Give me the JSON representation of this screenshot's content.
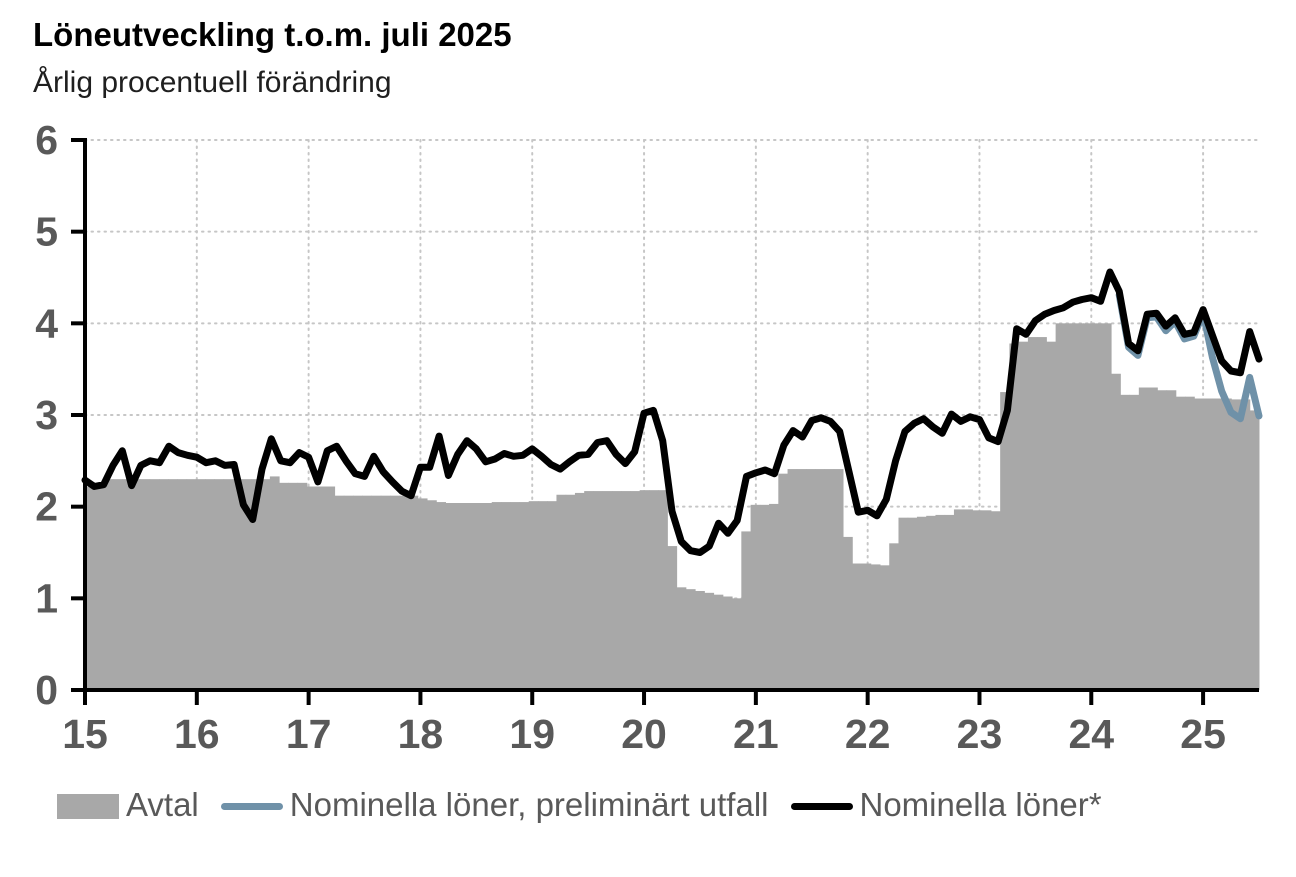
{
  "header": {
    "title": "Löneutveckling t.o.m. juli 2025",
    "subtitle": "Årlig procentuell förändring"
  },
  "chart_data": {
    "type": "combo-bar-line",
    "title": "Löneutveckling t.o.m. juli 2025",
    "subtitle": "Årlig procentuell förändring",
    "x_unit": "month",
    "x_start": "2015-01",
    "x_end": "2025-07",
    "points_count": 127,
    "ylim": [
      0,
      6
    ],
    "y_tick_labels": [
      "0",
      "1",
      "2",
      "3",
      "4",
      "5",
      "6"
    ],
    "x_tick_labels": [
      "15",
      "16",
      "17",
      "18",
      "19",
      "20",
      "21",
      "22",
      "23",
      "24",
      "25"
    ],
    "x_tick_month_index": [
      0,
      12,
      24,
      36,
      48,
      60,
      72,
      84,
      96,
      108,
      120
    ],
    "grid": "dotted",
    "legend_position": "bottom",
    "series": [
      {
        "name": "Avtal",
        "type": "bar",
        "color": "#a8a8a8",
        "values": [
          2.22,
          2.22,
          2.3,
          2.3,
          2.3,
          2.3,
          2.3,
          2.3,
          2.3,
          2.3,
          2.3,
          2.3,
          2.3,
          2.3,
          2.3,
          2.3,
          2.3,
          2.3,
          2.3,
          2.3,
          2.33,
          2.26,
          2.26,
          2.26,
          2.22,
          2.22,
          2.22,
          2.12,
          2.12,
          2.12,
          2.12,
          2.12,
          2.12,
          2.12,
          2.12,
          2.12,
          2.09,
          2.07,
          2.05,
          2.04,
          2.04,
          2.04,
          2.04,
          2.04,
          2.05,
          2.05,
          2.05,
          2.05,
          2.06,
          2.06,
          2.06,
          2.13,
          2.13,
          2.15,
          2.17,
          2.17,
          2.17,
          2.17,
          2.17,
          2.17,
          2.18,
          2.18,
          2.18,
          1.57,
          1.12,
          1.1,
          1.08,
          1.06,
          1.04,
          1.02,
          1.0,
          1.73,
          2.02,
          2.02,
          2.03,
          2.36,
          2.41,
          2.41,
          2.41,
          2.41,
          2.41,
          2.41,
          1.67,
          1.38,
          1.38,
          1.37,
          1.36,
          1.6,
          1.88,
          1.88,
          1.89,
          1.9,
          1.91,
          1.91,
          1.97,
          1.97,
          1.96,
          1.96,
          1.95,
          3.25,
          3.78,
          3.8,
          3.85,
          3.85,
          3.8,
          4.0,
          4.0,
          4.0,
          4.0,
          4.0,
          4.0,
          3.45,
          3.22,
          3.22,
          3.3,
          3.3,
          3.27,
          3.27,
          3.2,
          3.2,
          3.18,
          3.18,
          3.18,
          3.18,
          3.17,
          3.17,
          3.05
        ]
      },
      {
        "name": "Nominella löner, preliminärt utfall",
        "type": "line",
        "color": "#6f91a8",
        "start_index": 111,
        "values": [
          4.31,
          3.74,
          3.65,
          4.06,
          4.07,
          3.92,
          4.02,
          3.83,
          3.86,
          4.11,
          3.63,
          3.26,
          3.03,
          2.96,
          3.41,
          2.99
        ]
      },
      {
        "name": "Nominella löner*",
        "type": "line",
        "color": "#000000",
        "values": [
          2.29,
          2.22,
          2.24,
          2.45,
          2.61,
          2.23,
          2.45,
          2.5,
          2.48,
          2.66,
          2.59,
          2.56,
          2.54,
          2.48,
          2.5,
          2.45,
          2.46,
          2.02,
          1.86,
          2.41,
          2.74,
          2.5,
          2.48,
          2.59,
          2.54,
          2.27,
          2.61,
          2.66,
          2.5,
          2.36,
          2.33,
          2.55,
          2.38,
          2.27,
          2.17,
          2.12,
          2.43,
          2.43,
          2.77,
          2.34,
          2.57,
          2.72,
          2.63,
          2.49,
          2.52,
          2.58,
          2.55,
          2.56,
          2.63,
          2.55,
          2.46,
          2.41,
          2.49,
          2.56,
          2.57,
          2.7,
          2.72,
          2.57,
          2.47,
          2.6,
          3.02,
          3.05,
          2.72,
          1.95,
          1.62,
          1.52,
          1.5,
          1.57,
          1.82,
          1.71,
          1.85,
          2.33,
          2.37,
          2.4,
          2.36,
          2.67,
          2.83,
          2.76,
          2.94,
          2.97,
          2.93,
          2.82,
          2.38,
          1.94,
          1.96,
          1.9,
          2.08,
          2.5,
          2.82,
          2.91,
          2.96,
          2.87,
          2.8,
          3.01,
          2.93,
          2.98,
          2.95,
          2.75,
          2.71,
          3.05,
          3.94,
          3.88,
          4.03,
          4.1,
          4.14,
          4.17,
          4.23,
          4.26,
          4.28,
          4.24,
          4.56,
          4.35,
          3.78,
          3.7,
          4.1,
          4.11,
          3.97,
          4.06,
          3.88,
          3.9,
          4.15,
          3.87,
          3.59,
          3.48,
          3.46,
          3.91,
          3.61
        ]
      }
    ]
  },
  "colors": {
    "bar": "#a8a8a8",
    "line_preliminary": "#6f91a8",
    "line_nominal": "#000000",
    "axis": "#000000",
    "grid": "#c6c6c6",
    "text_muted": "#595959",
    "background": "#ffffff"
  }
}
